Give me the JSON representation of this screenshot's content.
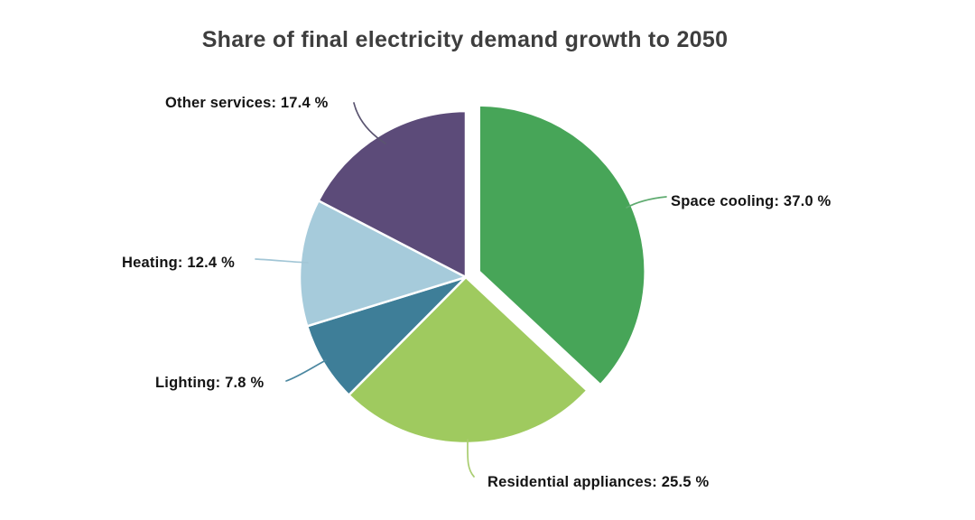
{
  "page": {
    "background": "#ffffff"
  },
  "chart_data": {
    "type": "pie",
    "title": "Share of final electricity demand growth to 2050",
    "unit": "%",
    "start_angle_deg": 0,
    "direction": "clockwise",
    "legend_position": "none",
    "label_style": "outside-with-leader-lines",
    "slices": [
      {
        "name": "Space cooling",
        "value": 37.0,
        "label_text": "Space cooling: 37.0 %",
        "color": "#47a558",
        "line_color": "#5fab70",
        "exploded": true
      },
      {
        "name": "Residential appliances",
        "value": 25.5,
        "label_text": "Residential appliances: 25.5 %",
        "color": "#9fca5f",
        "line_color": "#a9cd70",
        "exploded": false
      },
      {
        "name": "Lighting",
        "value": 7.8,
        "label_text": "Lighting: 7.8 %",
        "color": "#3e7e98",
        "line_color": "#4b87a0",
        "exploded": false
      },
      {
        "name": "Heating",
        "value": 12.4,
        "label_text": "Heating: 12.4 %",
        "color": "#a6cbdb",
        "line_color": "#a2c6d6",
        "exploded": false
      },
      {
        "name": "Other services",
        "value": 17.4,
        "label_text": "Other services: 17.4 %",
        "color": "#5c4b79",
        "line_color": "#5a5470",
        "exploded": false
      }
    ],
    "title_color": "#3e3e3e"
  }
}
